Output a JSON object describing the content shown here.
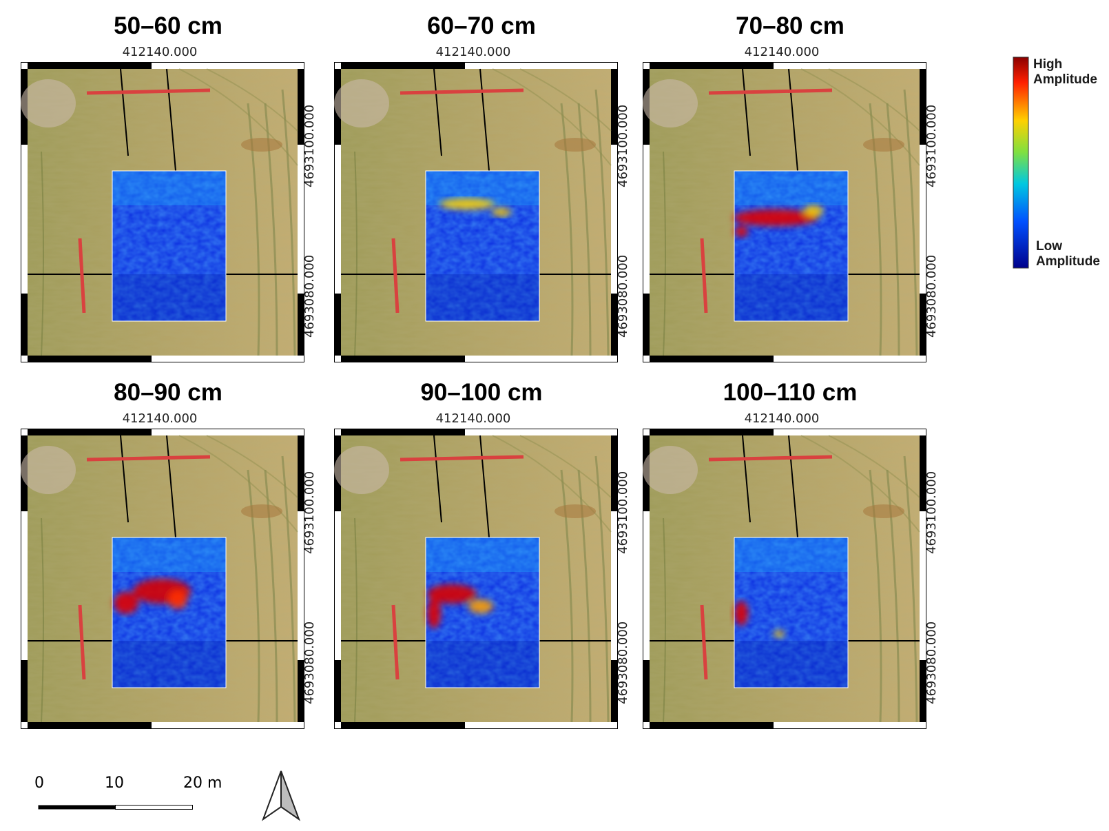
{
  "panels": [
    {
      "title": "50–60 cm",
      "coord_x": "412140.000",
      "coord_y_top": "4693100.000",
      "coord_y_bottom": "4693080.000"
    },
    {
      "title": "60–70 cm",
      "coord_x": "412140.000",
      "coord_y_top": "4693100.000",
      "coord_y_bottom": "4693080.000"
    },
    {
      "title": "70–80 cm",
      "coord_x": "412140.000",
      "coord_y_top": "4693100.000",
      "coord_y_bottom": "4693080.000"
    },
    {
      "title": "80–90 cm",
      "coord_x": "412140.000",
      "coord_y_top": "4693100.000",
      "coord_y_bottom": "4693080.000"
    },
    {
      "title": "90–100 cm",
      "coord_x": "412140.000",
      "coord_y_top": "4693100.000",
      "coord_y_bottom": "4693080.000"
    },
    {
      "title": "100–110 cm",
      "coord_x": "412140.000",
      "coord_y_top": "4693100.000",
      "coord_y_bottom": "4693080.000"
    }
  ],
  "legend": {
    "high_line1": "High",
    "high_line2": "Amplitude",
    "low_line1": "Low",
    "low_line2": "Amplitude"
  },
  "scalebar": {
    "label_0": "0",
    "label_10": "10",
    "label_20": "20 m"
  },
  "colors": {
    "high": "#c00000",
    "mid": "#ffd700",
    "low": "#00008b",
    "marker_lines": "#d9413f",
    "field": "#a89d5f"
  }
}
